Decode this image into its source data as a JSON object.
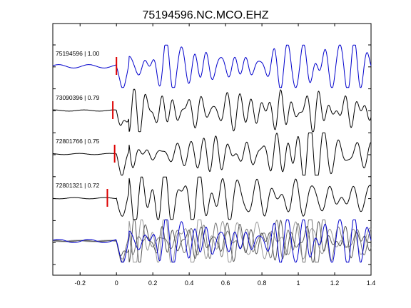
{
  "chart_data": {
    "type": "line",
    "title": "75194596.NC.MCO.EHZ",
    "xlabel": "",
    "ylabel": "",
    "xlim": [
      -0.35,
      1.4
    ],
    "xticks": [
      -0.2,
      0,
      0.2,
      0.4,
      0.6,
      0.8,
      1,
      1.2,
      1.4
    ],
    "xtick_labels": [
      "-0.2",
      "0",
      "0.2",
      "0.4",
      "0.6",
      "0.8",
      "1",
      "1.2",
      "1.4"
    ],
    "grid": false,
    "series": [
      {
        "name": "75194596 | 1.00",
        "color": "#0000cc",
        "pick": 0.0
      },
      {
        "name": "73090396 | 0.79",
        "color": "#000000",
        "pick": -0.02
      },
      {
        "name": "72801766 | 0.75",
        "color": "#000000",
        "pick": -0.01
      },
      {
        "name": "72801321 | 0.72",
        "color": "#000000",
        "pick": -0.05
      }
    ],
    "pick_color": "#dd0000",
    "stack_colors": [
      "#0000cc",
      "#555555",
      "#777777",
      "#999999"
    ]
  }
}
